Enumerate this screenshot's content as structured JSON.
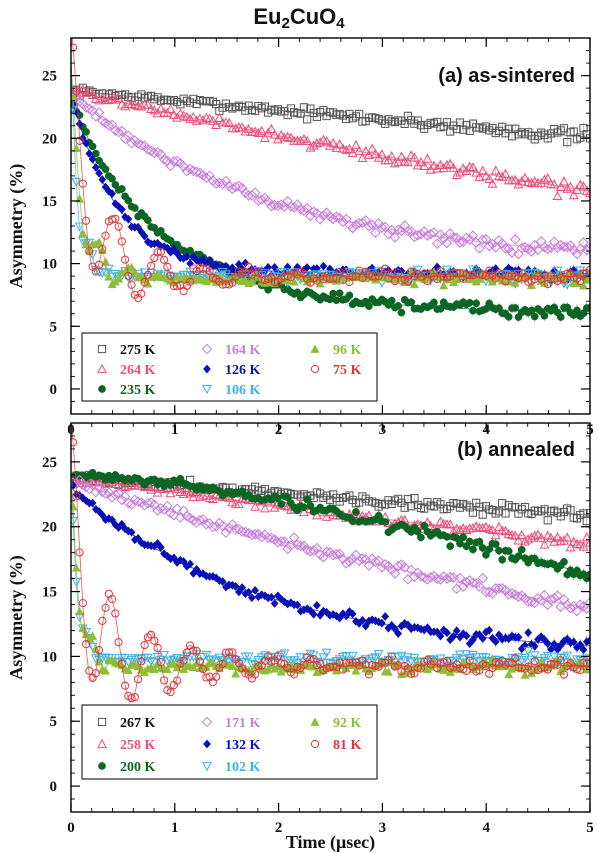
{
  "figure": {
    "title_main": "Eu",
    "title_sub1": "2",
    "title_mid": "CuO",
    "title_sub2": "4"
  },
  "chart_data": [
    {
      "type": "scatter",
      "panel_label": "(a) as-sintered",
      "xlabel": "Time (μsec)",
      "ylabel": "Asymmetry (%)",
      "xlim": [
        0,
        5
      ],
      "ylim": [
        -2,
        28
      ],
      "xticks": [
        0,
        1,
        2,
        3,
        4,
        5
      ],
      "yticks": [
        0,
        5,
        10,
        15,
        20,
        25
      ],
      "grid": false,
      "legend_position": "bottom-left",
      "series": [
        {
          "name": "275 K",
          "color": "#555555",
          "marker": "open-square",
          "model": {
            "kind": "decay",
            "A0": 23.8,
            "Ainf": 0,
            "lambda": 0.034,
            "beta": 1,
            "A_osc": 0,
            "freq": 0,
            "damp": 0
          }
        },
        {
          "name": "264 K",
          "color": "#e8507a",
          "marker": "open-triangle-up",
          "model": {
            "kind": "decay",
            "A0": 23.8,
            "Ainf": 0,
            "lambda": 0.082,
            "beta": 1,
            "A_osc": 0,
            "freq": 0,
            "damp": 0
          }
        },
        {
          "name": "235 K",
          "color": "#0b6623",
          "marker": "filled-circle",
          "model": {
            "kind": "decay",
            "A0": 23.5,
            "Ainf": 6.0,
            "lambda": 1.15,
            "beta": 0.9,
            "A_osc": 0,
            "freq": 0,
            "damp": 0
          }
        },
        {
          "name": "164 K",
          "color": "#c77ddb",
          "marker": "open-diamond",
          "model": {
            "kind": "decay",
            "A0": 23.5,
            "Ainf": 10.0,
            "lambda": 0.52,
            "beta": 1,
            "A_osc": 0,
            "freq": 0,
            "damp": 0
          }
        },
        {
          "name": "126 K",
          "color": "#0a10b8",
          "marker": "filled-diamond",
          "model": {
            "kind": "decay",
            "A0": 23.5,
            "Ainf": 9.2,
            "lambda": 2.2,
            "beta": 1,
            "A_osc": 0,
            "freq": 0,
            "damp": 0
          }
        },
        {
          "name": "106 K",
          "color": "#3fb1e0",
          "marker": "open-triangle-down",
          "model": {
            "kind": "osc",
            "A0": 23.5,
            "Ainf": 9.0,
            "lambda": 12.0,
            "beta": 1,
            "A_osc": 2.5,
            "freq": 5.5,
            "damp": 6.0
          }
        },
        {
          "name": "96 K",
          "color": "#8fbd3a",
          "marker": "filled-triangle-up",
          "model": {
            "kind": "osc",
            "A0": 23.0,
            "Ainf": 8.8,
            "lambda": 8.0,
            "beta": 1,
            "A_osc": 3.0,
            "freq": 3.6,
            "damp": 3.2
          }
        },
        {
          "name": "75 K",
          "color": "#e0353a",
          "marker": "open-circle",
          "model": {
            "kind": "osc",
            "A0": 23.0,
            "Ainf": 9.0,
            "lambda": 5.0,
            "beta": 1,
            "A_osc": 6.0,
            "freq": 2.35,
            "damp": 1.6
          }
        }
      ]
    },
    {
      "type": "scatter",
      "panel_label": "(b) annealed",
      "xlabel": "Time (μsec)",
      "ylabel": "Asymmetry (%)",
      "xlim": [
        0,
        5
      ],
      "ylim": [
        -2,
        28
      ],
      "xticks": [
        0,
        1,
        2,
        3,
        4,
        5
      ],
      "yticks": [
        0,
        5,
        10,
        15,
        20,
        25
      ],
      "grid": false,
      "legend_position": "bottom-left",
      "series": [
        {
          "name": "267 K",
          "color": "#555555",
          "marker": "open-square",
          "model": {
            "kind": "decay",
            "A0": 23.8,
            "Ainf": 0,
            "lambda": 0.026,
            "beta": 1,
            "A_osc": 0,
            "freq": 0,
            "damp": 0
          }
        },
        {
          "name": "258 K",
          "color": "#e8507a",
          "marker": "open-triangle-up",
          "model": {
            "kind": "decay",
            "A0": 23.8,
            "Ainf": 0,
            "lambda": 0.048,
            "beta": 1,
            "A_osc": 0,
            "freq": 0,
            "damp": 0
          }
        },
        {
          "name": "200 K",
          "color": "#0b6623",
          "marker": "filled-circle",
          "model": {
            "kind": "decay",
            "A0": 24.0,
            "Ainf": 0,
            "lambda": 0.11,
            "beta": 1.6,
            "A_osc": 0,
            "freq": 0,
            "damp": 0
          }
        },
        {
          "name": "171 K",
          "color": "#c77ddb",
          "marker": "open-diamond",
          "model": {
            "kind": "decay",
            "A0": 23.5,
            "Ainf": 0,
            "lambda": 0.108,
            "beta": 1,
            "A_osc": 0,
            "freq": 0,
            "damp": 0
          }
        },
        {
          "name": "132 K",
          "color": "#0a10b8",
          "marker": "filled-diamond",
          "model": {
            "kind": "decay",
            "A0": 23.0,
            "Ainf": 10.0,
            "lambda": 0.55,
            "beta": 1,
            "A_osc": 0,
            "freq": 0,
            "damp": 0
          }
        },
        {
          "name": "102 K",
          "color": "#3fb1e0",
          "marker": "open-triangle-down",
          "model": {
            "kind": "osc",
            "A0": 22.5,
            "Ainf": 9.8,
            "lambda": 14.0,
            "beta": 1,
            "A_osc": 1.5,
            "freq": 6.0,
            "damp": 8.0
          }
        },
        {
          "name": "92 K",
          "color": "#8fbd3a",
          "marker": "filled-triangle-up",
          "model": {
            "kind": "osc",
            "A0": 22.5,
            "Ainf": 9.2,
            "lambda": 11.0,
            "beta": 1,
            "A_osc": 2.0,
            "freq": 4.8,
            "damp": 4.5
          }
        },
        {
          "name": "81 K",
          "color": "#e0353a",
          "marker": "open-circle",
          "model": {
            "kind": "osc",
            "A0": 22.0,
            "Ainf": 9.3,
            "lambda": 6.0,
            "beta": 1,
            "A_osc": 6.5,
            "freq": 2.6,
            "damp": 1.25
          }
        }
      ]
    }
  ]
}
